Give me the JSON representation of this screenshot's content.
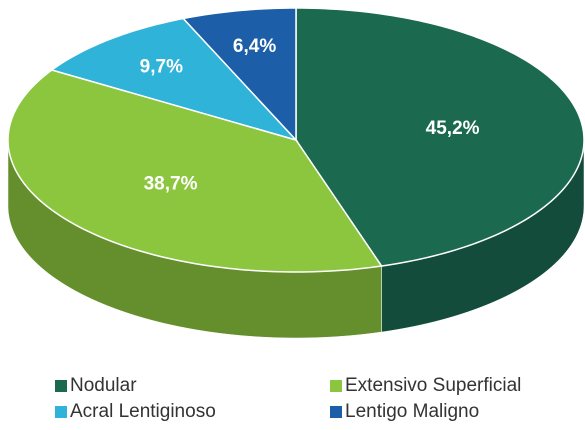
{
  "chart_data": {
    "type": "pie",
    "categories": [
      "Nodular",
      "Extensivo Superficial",
      "Acral Lentiginoso",
      "Lentigo Maligno"
    ],
    "values": [
      45.2,
      38.7,
      9.7,
      6.4
    ],
    "value_labels": [
      "45,2%",
      "38,7%",
      "9,7%",
      "6,4%"
    ],
    "colors": [
      "#1b6a50",
      "#8cc63f",
      "#2fb3d8",
      "#1c5fa8"
    ],
    "legend": "bottom"
  }
}
